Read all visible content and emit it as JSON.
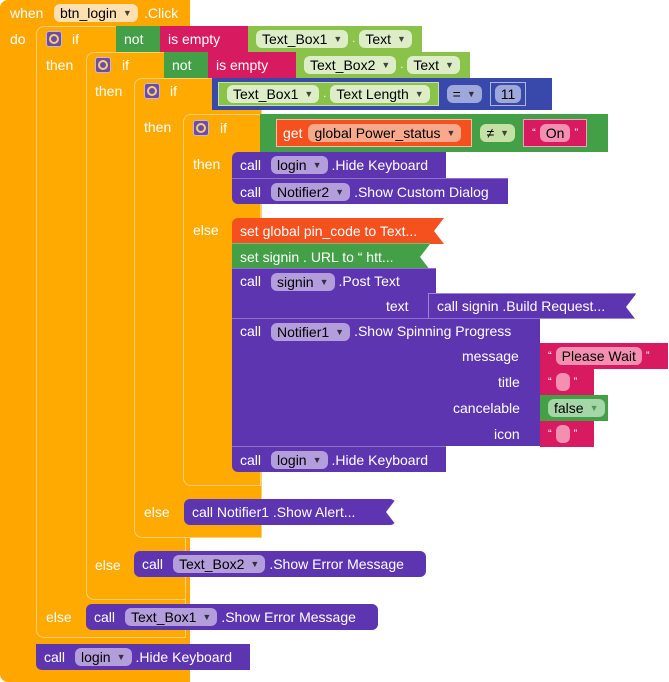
{
  "event": {
    "when": "when",
    "component": "btn_login",
    "event_name": ".Click",
    "do": "do"
  },
  "kw": {
    "if": "if",
    "then": "then",
    "else": "else",
    "not": "not",
    "is_empty": "is empty",
    "call": "call",
    "get": "get",
    "set": "set",
    "dot": "."
  },
  "if1": {
    "component": "Text_Box1",
    "property": "Text"
  },
  "if2": {
    "component": "Text_Box2",
    "property": "Text"
  },
  "if3": {
    "component": "Text_Box1",
    "property": "Text Length",
    "op": "=",
    "value": "11"
  },
  "if4": {
    "variable": "global Power_status",
    "op": "≠",
    "string": "On"
  },
  "then4": [
    {
      "component": "login",
      "method": ".Hide Keyboard"
    },
    {
      "component": "Notifier2",
      "method": ".Show Custom Dialog"
    }
  ],
  "else4": {
    "set_pin": "set global pin_code to Text...",
    "set_url": "set  signin . URL  to “ htt...",
    "post": {
      "component": "signin",
      "method": ".Post Text",
      "arg_label": "text",
      "arg_value": "call  signin .Build Request..."
    },
    "spin": {
      "component": "Notifier1",
      "method": ".Show Spinning Progress",
      "args": [
        {
          "label": "message",
          "value": "Please Wait"
        },
        {
          "label": "title",
          "value": ""
        },
        {
          "label": "cancelable",
          "value": "false"
        },
        {
          "label": "icon",
          "value": ""
        }
      ]
    },
    "hide": {
      "component": "login",
      "method": ".Hide Keyboard"
    }
  },
  "else3": {
    "text": "call  Notifier1 .Show Alert..."
  },
  "else2": {
    "component": "Text_Box2",
    "method": ".Show Error Message"
  },
  "else1": {
    "component": "Text_Box1",
    "method": ".Show Error Message"
  },
  "final": {
    "component": "login",
    "method": ".Hide Keyboard"
  },
  "quote_open": "“",
  "quote_close": "”",
  "colors": {
    "event": "#FFA600",
    "procedure": "#5E35B1",
    "logic": "#43A047",
    "component": "#8BC34A",
    "text": "#D81B60",
    "variable": "#F4511E",
    "math": "#3949AB"
  }
}
